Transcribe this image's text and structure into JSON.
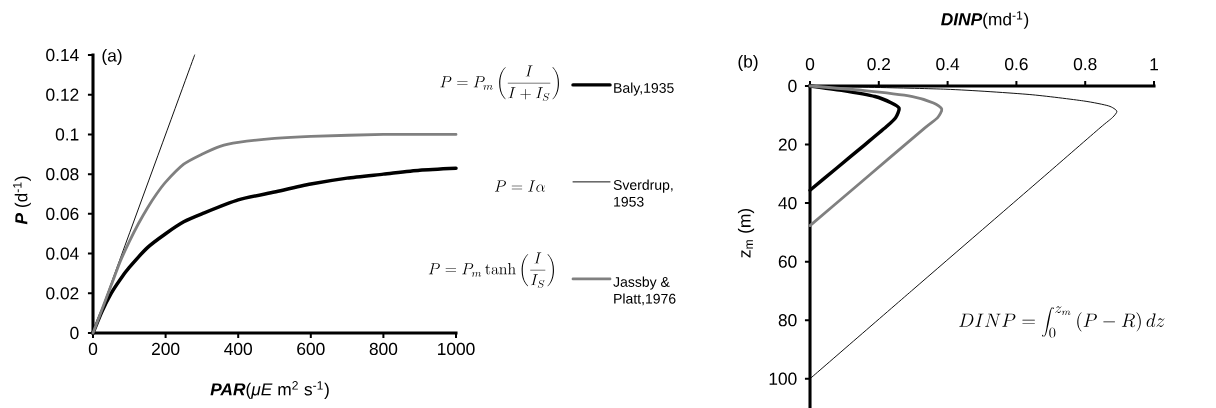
{
  "chart_data": [
    {
      "type": "line",
      "xlabel": "**PAR**(*μE* m$^{2}$ s$^{-1}$)",
      "ylabel": "**P** (d$^{-1}$)",
      "xlim": [
        0,
        1000
      ],
      "ylim": [
        0,
        0.14
      ],
      "xticks": [
        0,
        200,
        400,
        600,
        800,
        1000
      ],
      "yticks": [
        0,
        0.02,
        0.04,
        0.06,
        0.08,
        0.1,
        0.12,
        0.14
      ],
      "legend": "right",
      "series": [
        {
          "name": "Baly,1935",
          "color": "#000000",
          "x": [
            0,
            25,
            50,
            75,
            100,
            150,
            200,
            250,
            300,
            400,
            500,
            600,
            700,
            800,
            900,
            1000
          ],
          "values": [
            0,
            0.011,
            0.02,
            0.027,
            0.033,
            0.043,
            0.05,
            0.056,
            0.06,
            0.067,
            0.071,
            0.075,
            0.078,
            0.08,
            0.082,
            0.083
          ]
        },
        {
          "name": "Sverdrup, 1953",
          "color": "#000000",
          "x": [
            0,
            280
          ],
          "values": [
            0,
            0.14
          ]
        },
        {
          "name": "Jassby & Platt,1976",
          "color": "#808080",
          "x": [
            0,
            25,
            50,
            75,
            100,
            125,
            150,
            175,
            200,
            250,
            300,
            350,
            400,
            500,
            600,
            800,
            1000
          ],
          "values": [
            0,
            0.012,
            0.024,
            0.036,
            0.046,
            0.055,
            0.063,
            0.07,
            0.076,
            0.085,
            0.09,
            0.094,
            0.096,
            0.098,
            0.099,
            0.1,
            0.1
          ]
        }
      ],
      "annotations": [
        "(a)",
        "P = P_m \\left( \\frac{I}{I + I_S} \\right)",
        "P = I\\alpha",
        "P = P_m \\tanh \\left( \\frac{I}{I_S} \\right)"
      ]
    },
    {
      "type": "line",
      "xlabel": "**DINP**(md$^{-1}$)",
      "ylabel": "z$_{m}$ (m)",
      "xlim": [
        0,
        1
      ],
      "ylim": [
        110,
        0
      ],
      "xticks": [
        0,
        0.2,
        0.4,
        0.6,
        0.8,
        1
      ],
      "yticks": [
        0,
        20,
        40,
        60,
        80,
        100
      ],
      "series": [
        {
          "color": "#000000",
          "x": [
            0,
            0.092,
            0.189,
            0.237,
            0.259,
            0.249,
            0.225,
            0.16,
            0.078,
            0
          ],
          "values": [
            0,
            1.5,
            3.6,
            5.8,
            7.6,
            10.8,
            13.6,
            20,
            28,
            35.6
          ]
        },
        {
          "color": "#000000",
          "x": [
            0,
            0.395,
            0.637,
            0.795,
            0.868,
            0.892,
            0.879,
            0.843,
            0.689,
            0.492,
            0.295,
            0
          ],
          "values": [
            0,
            1.1,
            2.9,
            5.1,
            6.8,
            8.6,
            10.8,
            14.3,
            30,
            50,
            70,
            100
          ]
        },
        {
          "color": "#808080",
          "x": [
            0,
            0.153,
            0.298,
            0.359,
            0.383,
            0.371,
            0.334,
            0.227,
            0.127,
            0
          ],
          "values": [
            0,
            1.5,
            3.6,
            5.8,
            7.9,
            10.8,
            14.3,
            25,
            35,
            47.7
          ]
        }
      ],
      "annotations": [
        "(b)",
        "DINP = \\int_0^{z_m} \\left( P - R \\right) dz"
      ]
    }
  ]
}
